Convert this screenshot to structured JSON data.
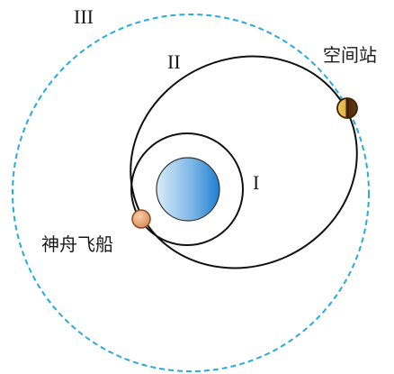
{
  "labels": {
    "orbit_3": "III",
    "orbit_2": "II",
    "orbit_1": "I",
    "space_station": "空间站",
    "spacecraft": "神舟飞船"
  },
  "colors": {
    "orbit_3_stroke": "#29a9e0",
    "orbit_stroke": "#111111",
    "earth_light": "#d9ecf8",
    "earth_dark": "#1f7fd0",
    "spacecraft_fill": "#e8a072",
    "station_gold": "#e0b040",
    "station_dark": "#5a3208"
  }
}
